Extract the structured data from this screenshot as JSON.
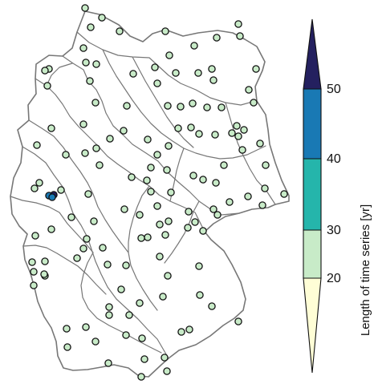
{
  "legend": {
    "title": "Length of time series [yr]",
    "ticks": [
      "20",
      "30",
      "40",
      "50"
    ],
    "bands": [
      {
        "from": 10,
        "to": 20,
        "color": "#fffed6",
        "kind": "lower-arrow"
      },
      {
        "from": 20,
        "to": 30,
        "color": "#c8ebc8"
      },
      {
        "from": 30,
        "to": 40,
        "color": "#25b5ab"
      },
      {
        "from": 40,
        "to": 50,
        "color": "#1979b4"
      },
      {
        "from": 50,
        "to": 60,
        "color": "#24205f",
        "kind": "upper-arrow"
      }
    ]
  },
  "map": {
    "outline_color": "#777777",
    "station_outline": "#111111",
    "default_fill": "#c8ebc8"
  }
}
